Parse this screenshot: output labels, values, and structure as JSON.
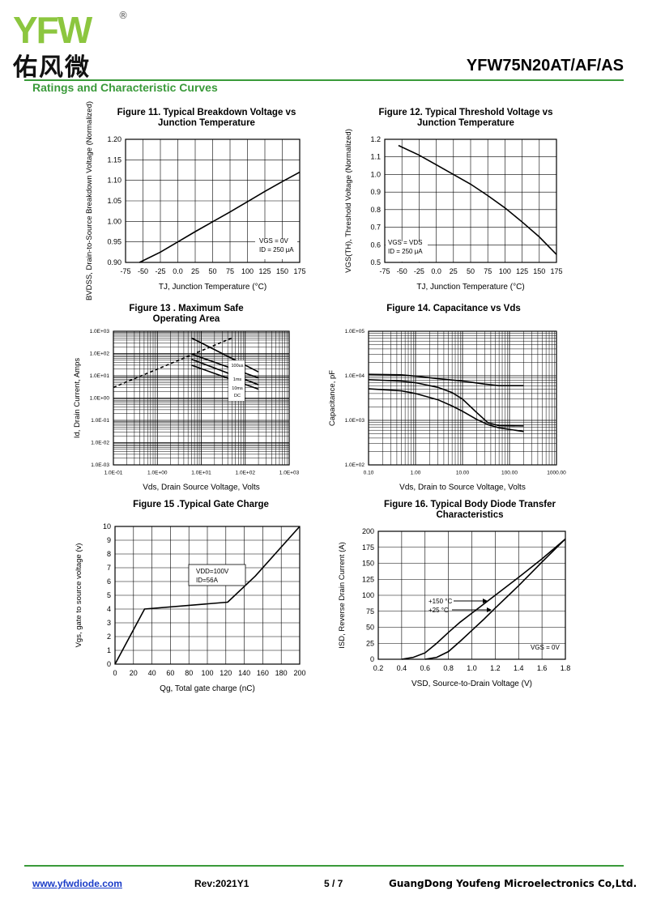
{
  "header": {
    "logo_text": "YFW",
    "logo_reg": "®",
    "logo_cn": "佑风微",
    "part_number": "YFW75N20AT/AF/AS",
    "section_title": "Ratings and Characteristic Curves"
  },
  "colors": {
    "accent_green": "#3a9a3a",
    "logo_green": "#8cc63f",
    "logo_orange": "#f39c12",
    "link_blue": "#1a3cc8"
  },
  "footer": {
    "url": "www.yfwdiode.com",
    "rev": "Rev:2021Y1",
    "page": "5 / 7",
    "company": "GuangDong Youfeng Microelectronics Co,Ltd."
  },
  "chart_data": [
    {
      "id": "fig11",
      "type": "line",
      "title": "Figure 11. Typical Breakdown Voltage vs\nJunction Temperature",
      "xlabel": "TJ, Junction Temperature (°C)",
      "ylabel": "BVDSS, Drain-to-Source Breakdown Voltage (Normalized)",
      "xlim": [
        -75,
        175
      ],
      "ylim": [
        0.9,
        1.2
      ],
      "xticks": [
        -75,
        -50,
        -25,
        0,
        25,
        50,
        75,
        100,
        125,
        150,
        175
      ],
      "xticklabels": [
        "-75",
        "-50",
        "-25",
        "0.0",
        "25",
        "50",
        "75",
        "100",
        "125",
        "150",
        "175"
      ],
      "yticks": [
        0.9,
        0.95,
        1.0,
        1.05,
        1.1,
        1.15,
        1.2
      ],
      "yticklabels": [
        "0.90",
        "0.95",
        "1.00",
        "1.05",
        "1.10",
        "1.15",
        "1.20"
      ],
      "grid": true,
      "annotation": [
        "VGS = 0V",
        "ID = 250 μA"
      ],
      "series": [
        {
          "x": [
            -55,
            -25,
            0,
            25,
            50,
            75,
            100,
            125,
            150,
            175
          ],
          "y": [
            0.9,
            0.925,
            0.95,
            0.975,
            0.999,
            1.023,
            1.048,
            1.073,
            1.097,
            1.12
          ]
        }
      ]
    },
    {
      "id": "fig12",
      "type": "line",
      "title": "Figure 12.  Typical Threshold Voltage vs\nJunction Temperature",
      "xlabel": "TJ, Junction Temperature (°C)",
      "ylabel": "VGS(TH), Threshold Voltage (Normalized)",
      "xlim": [
        -75,
        175
      ],
      "ylim": [
        0.5,
        1.2
      ],
      "xticks": [
        -75,
        -50,
        -25,
        0,
        25,
        50,
        75,
        100,
        125,
        150,
        175
      ],
      "xticklabels": [
        "-75",
        "-50",
        "-25",
        "0.0",
        "25",
        "50",
        "75",
        "100",
        "125",
        "150",
        "175"
      ],
      "yticks": [
        0.5,
        0.6,
        0.7,
        0.8,
        0.9,
        1.0,
        1.1,
        1.2
      ],
      "yticklabels": [
        "0.5",
        "0.6",
        "0.7",
        "0.8",
        "0.9",
        "1.0",
        "1.1",
        "1.2"
      ],
      "grid": true,
      "annotation": [
        "VGS = VDS",
        "ID = 250 μA"
      ],
      "series": [
        {
          "x": [
            -55,
            -25,
            0,
            25,
            50,
            75,
            100,
            125,
            150,
            175
          ],
          "y": [
            1.165,
            1.11,
            1.055,
            1.0,
            0.945,
            0.88,
            0.81,
            0.73,
            0.645,
            0.545
          ]
        }
      ]
    },
    {
      "id": "fig13",
      "type": "line",
      "title": "Figure 13 . Maximum Safe\nOperating Area",
      "xlabel": "Vds, Drain Source Voltage, Volts",
      "ylabel": "Id, Drain Current, Amps",
      "xscale": "log",
      "yscale": "log",
      "xlim": [
        0.1,
        1000
      ],
      "ylim": [
        0.001,
        1000
      ],
      "xticks": [
        0.1,
        1,
        10,
        100,
        1000
      ],
      "xticklabels": [
        "1.0E-01",
        "1.0E+00",
        "1.0E+01",
        "1.0E+02",
        "1.0E+03"
      ],
      "yticks": [
        0.001,
        0.01,
        0.1,
        1,
        10,
        100,
        1000
      ],
      "yticklabels": [
        "1.0E-03",
        "1.0E-02",
        "1.0E-01",
        "1.0E+00",
        "1.0E+01",
        "1.0E+02",
        "1.0E+03"
      ],
      "grid": true,
      "series": [
        {
          "name": "100us",
          "x": [
            6,
            200
          ],
          "y": [
            500,
            15
          ]
        },
        {
          "name": "1ms",
          "x": [
            6,
            200
          ],
          "y": [
            95,
            8
          ]
        },
        {
          "name": "10ms",
          "x": [
            6,
            200
          ],
          "y": [
            55,
            4
          ]
        },
        {
          "name": "DC",
          "x": [
            6,
            200
          ],
          "y": [
            30,
            2.5
          ]
        },
        {
          "name": "",
          "x": [
            0.1,
            50
          ],
          "y": [
            3,
            500
          ]
        }
      ],
      "labels": [
        "100us",
        "1ms",
        "10ms",
        "DC"
      ]
    },
    {
      "id": "fig14",
      "type": "line",
      "title": "Figure 14. Capacitance vs Vds",
      "xlabel": "Vds, Drain to Source Voltage, Volts",
      "ylabel": "Capacitance, pF",
      "xscale": "log",
      "yscale": "log",
      "xlim": [
        0.1,
        1000
      ],
      "ylim": [
        100,
        100000
      ],
      "xticks": [
        0.1,
        1,
        10,
        100,
        1000
      ],
      "xticklabels": [
        "0.10",
        "1.00",
        "10.00",
        "100.00",
        "1000.00"
      ],
      "yticks": [
        100,
        1000,
        10000,
        100000
      ],
      "yticklabels": [
        "1.0E+02",
        "1.0E+03",
        "1.0E+04",
        "1.0E+05"
      ],
      "grid": true,
      "series": [
        {
          "x": [
            0.1,
            0.5,
            1,
            3,
            8,
            15,
            30,
            60,
            200
          ],
          "y": [
            10800,
            10500,
            9800,
            8600,
            7800,
            7200,
            6500,
            6000,
            6000
          ]
        },
        {
          "x": [
            0.1,
            0.5,
            1,
            3,
            6,
            10,
            20,
            35,
            60,
            200
          ],
          "y": [
            8200,
            7600,
            7000,
            5500,
            4200,
            3000,
            1500,
            880,
            760,
            750
          ]
        },
        {
          "x": [
            0.1,
            0.5,
            1,
            3,
            6,
            10,
            20,
            35,
            60,
            200
          ],
          "y": [
            5100,
            4600,
            4000,
            2900,
            2100,
            1600,
            1050,
            800,
            680,
            560
          ]
        }
      ]
    },
    {
      "id": "fig15",
      "type": "line",
      "title": "Figure 15 .Typical Gate Charge",
      "xlabel": "Qg, Total gate charge (nC)",
      "ylabel": "Vgs, gate to source voltage (v)",
      "xlim": [
        0,
        200
      ],
      "ylim": [
        0,
        10
      ],
      "xticks": [
        0,
        20,
        40,
        60,
        80,
        100,
        120,
        140,
        160,
        180,
        200
      ],
      "xticklabels": [
        "0",
        "20",
        "40",
        "60",
        "80",
        "100",
        "120",
        "140",
        "160",
        "180",
        "200"
      ],
      "yticks": [
        0,
        1,
        2,
        3,
        4,
        5,
        6,
        7,
        8,
        9,
        10
      ],
      "yticklabels": [
        "0",
        "1",
        "2",
        "3",
        "4",
        "5",
        "6",
        "7",
        "8",
        "9",
        "10"
      ],
      "grid": true,
      "annotation": [
        "VDD=100V",
        "ID=56A"
      ],
      "series": [
        {
          "x": [
            0,
            32,
            122,
            152,
            200
          ],
          "y": [
            0,
            4,
            4.5,
            6.4,
            10
          ]
        }
      ]
    },
    {
      "id": "fig16",
      "type": "line",
      "title": "Figure 16.   Typical Body Diode Transfer\nCharacteristics",
      "xlabel": "VSD, Source-to-Drain Voltage (V)",
      "ylabel": "ISD, Reverse Drain Current (A)",
      "xlim": [
        0.2,
        1.8
      ],
      "ylim": [
        0,
        200
      ],
      "xticks": [
        0.2,
        0.4,
        0.6,
        0.8,
        1.0,
        1.2,
        1.4,
        1.6,
        1.8
      ],
      "xticklabels": [
        "0.2",
        "0.4",
        "0.6",
        "0.8",
        "1.0",
        "1.2",
        "1.4",
        "1.6",
        "1.8"
      ],
      "yticks": [
        0,
        25,
        50,
        75,
        100,
        125,
        150,
        175,
        200
      ],
      "yticklabels": [
        "0",
        "25",
        "50",
        "75",
        "100",
        "125",
        "150",
        "175",
        "200"
      ],
      "grid": true,
      "annotation": [
        "VGS = 0V"
      ],
      "series": [
        {
          "name": "+150 °C",
          "x": [
            0.4,
            0.5,
            0.6,
            0.7,
            0.8,
            0.9,
            1.0,
            1.2,
            1.4,
            1.6,
            1.8
          ],
          "y": [
            0,
            3,
            10,
            25,
            42,
            58,
            72,
            100,
            128,
            157,
            188
          ]
        },
        {
          "name": "+25 °C",
          "x": [
            0.6,
            0.7,
            0.8,
            0.9,
            1.0,
            1.1,
            1.2,
            1.4,
            1.6,
            1.8
          ],
          "y": [
            0,
            3,
            12,
            28,
            45,
            62,
            80,
            115,
            152,
            188
          ]
        }
      ]
    }
  ]
}
